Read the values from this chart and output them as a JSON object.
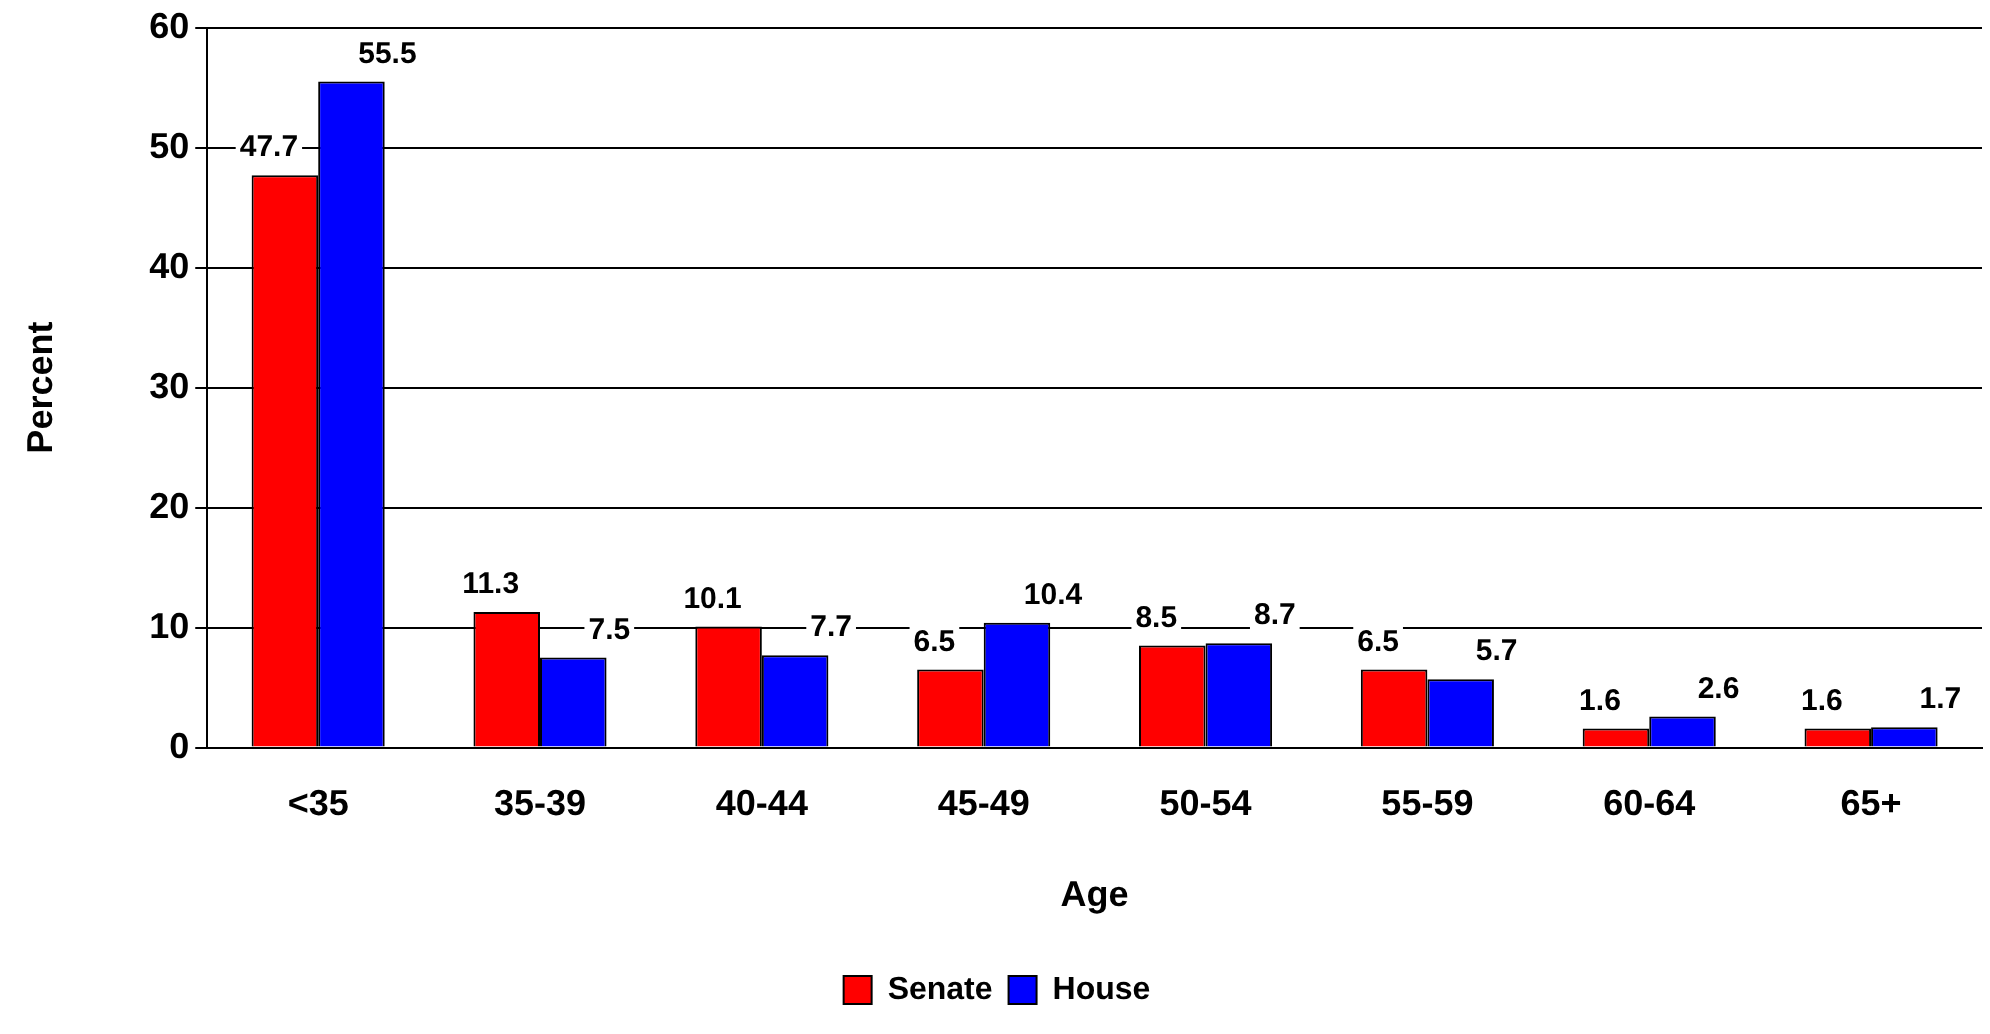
{
  "chart_data": {
    "type": "bar",
    "xlabel": "Age",
    "ylabel": "Percent",
    "categories": [
      "<35",
      "35-39",
      "40-44",
      "45-49",
      "50-54",
      "55-59",
      "60-64",
      "65+"
    ],
    "series": [
      {
        "name": "Senate",
        "color": "#ff0000",
        "values": [
          47.7,
          11.3,
          10.1,
          6.5,
          8.5,
          6.5,
          1.6,
          1.6
        ]
      },
      {
        "name": "House",
        "color": "#0000ff",
        "values": [
          55.5,
          7.5,
          7.7,
          10.4,
          8.7,
          5.7,
          2.6,
          1.7
        ]
      }
    ],
    "ylim": [
      0,
      60
    ],
    "yticks": [
      0,
      10,
      20,
      30,
      40,
      50,
      60
    ],
    "grid": "y",
    "legend": "bottom",
    "data_labels": true
  }
}
